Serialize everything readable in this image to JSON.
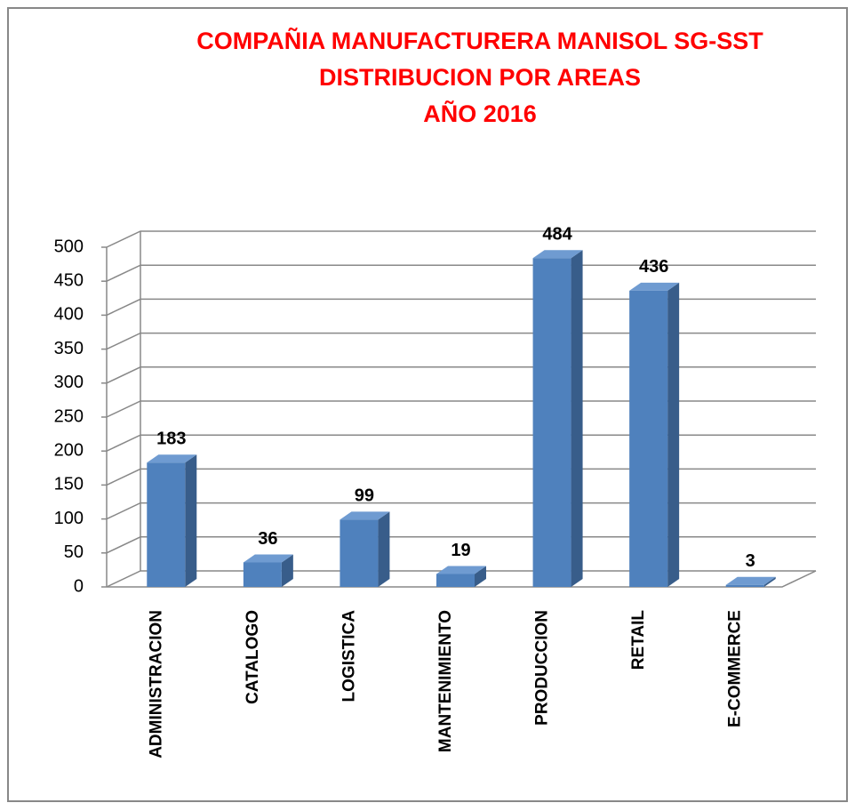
{
  "chart_data": {
    "type": "bar3d",
    "title": [
      "COMPAÑIA MANUFACTURERA MANISOL SG-SST",
      "DISTRIBUCION POR AREAS",
      "AÑO 2016"
    ],
    "categories": [
      "ADMINISTRACION",
      "CATALOGO",
      "LOGISTICA",
      "MANTENIMIENTO",
      "PRODUCCION",
      "RETAIL",
      "E-COMMERCE"
    ],
    "values": [
      183,
      36,
      99,
      19,
      484,
      436,
      3
    ],
    "color": "#4f81bd",
    "ylim": [
      0,
      500
    ],
    "yticks": [
      0,
      50,
      100,
      150,
      200,
      250,
      300,
      350,
      400,
      450,
      500
    ],
    "grid": true
  }
}
